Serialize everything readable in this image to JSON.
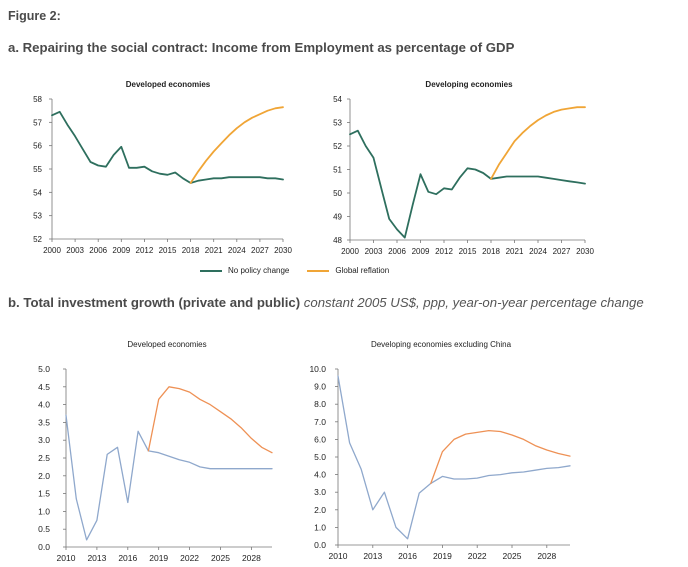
{
  "figure_label": "Figure 2:",
  "section_a": {
    "title": "a. Repairing the social contract: Income from Employment as percentage of GDP"
  },
  "section_b": {
    "title": "b. Total investment growth (private and public)",
    "subtitle": "constant 2005 US$, ppp, year-on-year percentage change"
  },
  "legend": {
    "items": [
      "No policy change",
      "Global reflation"
    ]
  },
  "colors": {
    "no_policy": "#2e6f5e",
    "reflation_a": "#f0a536",
    "baseline_b": "#8fa8cc",
    "reflation_b": "#ee9155"
  },
  "chart_data": [
    {
      "type": "line",
      "title": "Developed economies",
      "xlabel": "",
      "ylabel": "",
      "xlim": [
        2000,
        2030
      ],
      "ylim": [
        52,
        58
      ],
      "x_ticks": [
        "2000",
        "2003",
        "2006",
        "2009",
        "2012",
        "2015",
        "2018",
        "2021",
        "2024",
        "2027",
        "2030"
      ],
      "y_ticks": [
        "52",
        "53",
        "54",
        "55",
        "56",
        "57",
        "58"
      ],
      "series": [
        {
          "name": "No policy change",
          "x": [
            2000,
            2001,
            2002,
            2003,
            2004,
            2005,
            2006,
            2007,
            2008,
            2009,
            2010,
            2011,
            2012,
            2013,
            2014,
            2015,
            2016,
            2017,
            2018,
            2019,
            2020,
            2021,
            2022,
            2023,
            2024,
            2025,
            2026,
            2027,
            2028,
            2029,
            2030
          ],
          "values": [
            57.3,
            57.45,
            56.9,
            56.4,
            55.85,
            55.3,
            55.15,
            55.1,
            55.6,
            55.95,
            55.05,
            55.05,
            55.1,
            54.9,
            54.8,
            54.75,
            54.85,
            54.6,
            54.4,
            54.5,
            54.55,
            54.6,
            54.6,
            54.65,
            54.65,
            54.65,
            54.65,
            54.65,
            54.6,
            54.6,
            54.55
          ]
        },
        {
          "name": "Global reflation",
          "x": [
            2018,
            2019,
            2020,
            2021,
            2022,
            2023,
            2024,
            2025,
            2026,
            2027,
            2028,
            2029,
            2030
          ],
          "values": [
            54.4,
            54.9,
            55.35,
            55.75,
            56.1,
            56.45,
            56.75,
            57.0,
            57.2,
            57.35,
            57.5,
            57.6,
            57.65
          ]
        }
      ]
    },
    {
      "type": "line",
      "title": "Developing economies",
      "xlabel": "",
      "ylabel": "",
      "xlim": [
        2000,
        2030
      ],
      "ylim": [
        48,
        54
      ],
      "x_ticks": [
        "2000",
        "2003",
        "2006",
        "2009",
        "2012",
        "2015",
        "2018",
        "2021",
        "2024",
        "2027",
        "2030"
      ],
      "y_ticks": [
        "48",
        "49",
        "50",
        "51",
        "52",
        "53",
        "54"
      ],
      "series": [
        {
          "name": "No policy change",
          "x": [
            2000,
            2001,
            2002,
            2003,
            2004,
            2005,
            2006,
            2007,
            2008,
            2009,
            2010,
            2011,
            2012,
            2013,
            2014,
            2015,
            2016,
            2017,
            2018,
            2019,
            2020,
            2021,
            2022,
            2023,
            2024,
            2025,
            2026,
            2027,
            2028,
            2029,
            2030
          ],
          "values": [
            52.5,
            52.65,
            52.0,
            51.5,
            50.2,
            48.9,
            48.45,
            48.1,
            49.5,
            50.8,
            50.05,
            49.95,
            50.2,
            50.15,
            50.65,
            51.05,
            51.0,
            50.85,
            50.6,
            50.65,
            50.7,
            50.7,
            50.7,
            50.7,
            50.7,
            50.65,
            50.6,
            50.55,
            50.5,
            50.45,
            50.4
          ]
        },
        {
          "name": "Global reflation",
          "x": [
            2018,
            2019,
            2020,
            2021,
            2022,
            2023,
            2024,
            2025,
            2026,
            2027,
            2028,
            2029,
            2030
          ],
          "values": [
            50.6,
            51.2,
            51.7,
            52.2,
            52.55,
            52.85,
            53.1,
            53.3,
            53.45,
            53.55,
            53.6,
            53.65,
            53.65
          ]
        }
      ]
    },
    {
      "type": "line",
      "title": "Developed economies",
      "xlabel": "",
      "ylabel": "",
      "xlim": [
        2010,
        2030
      ],
      "ylim": [
        0,
        5
      ],
      "x_ticks": [
        "2010",
        "2013",
        "2016",
        "2019",
        "2022",
        "2025",
        "2028"
      ],
      "y_ticks": [
        "0.0",
        "0.5",
        "1.0",
        "1.5",
        "2.0",
        "2.5",
        "3.0",
        "3.5",
        "4.0",
        "4.5",
        "5.0"
      ],
      "series": [
        {
          "x": [
            2010,
            2011,
            2012,
            2013,
            2014,
            2015,
            2016,
            2017,
            2018,
            2019,
            2020,
            2021,
            2022,
            2023,
            2024,
            2025,
            2026,
            2027,
            2028,
            2029,
            2030
          ],
          "values": [
            3.7,
            1.35,
            0.2,
            0.75,
            2.6,
            2.8,
            1.25,
            3.25,
            2.7,
            2.65,
            2.55,
            2.45,
            2.38,
            2.25,
            2.2,
            2.2,
            2.2,
            2.2,
            2.2,
            2.2,
            2.2
          ]
        },
        {
          "x": [
            2018,
            2019,
            2020,
            2021,
            2022,
            2023,
            2024,
            2025,
            2026,
            2027,
            2028,
            2029,
            2030
          ],
          "values": [
            2.7,
            4.15,
            4.5,
            4.45,
            4.35,
            4.15,
            4.0,
            3.8,
            3.6,
            3.35,
            3.05,
            2.8,
            2.65
          ]
        }
      ]
    },
    {
      "type": "line",
      "title": "Developing economies excluding China",
      "xlabel": "",
      "ylabel": "",
      "xlim": [
        2010,
        2030
      ],
      "ylim": [
        0,
        10
      ],
      "x_ticks": [
        "2010",
        "2013",
        "2016",
        "2019",
        "2022",
        "2025",
        "2028"
      ],
      "y_ticks": [
        "0.0",
        "1.0",
        "2.0",
        "3.0",
        "4.0",
        "5.0",
        "6.0",
        "7.0",
        "8.0",
        "9.0",
        "10.0"
      ],
      "series": [
        {
          "x": [
            2010,
            2011,
            2012,
            2013,
            2014,
            2015,
            2016,
            2017,
            2018,
            2019,
            2020,
            2021,
            2022,
            2023,
            2024,
            2025,
            2026,
            2027,
            2028,
            2029,
            2030
          ],
          "values": [
            9.6,
            5.8,
            4.3,
            2.0,
            3.0,
            1.0,
            0.35,
            2.95,
            3.5,
            3.9,
            3.75,
            3.75,
            3.8,
            3.95,
            4.0,
            4.1,
            4.15,
            4.25,
            4.35,
            4.4,
            4.5
          ]
        },
        {
          "x": [
            2018,
            2019,
            2020,
            2021,
            2022,
            2023,
            2024,
            2025,
            2026,
            2027,
            2028,
            2029,
            2030
          ],
          "values": [
            3.5,
            5.3,
            6.0,
            6.3,
            6.4,
            6.5,
            6.45,
            6.25,
            6.0,
            5.65,
            5.4,
            5.2,
            5.05
          ]
        }
      ]
    }
  ]
}
